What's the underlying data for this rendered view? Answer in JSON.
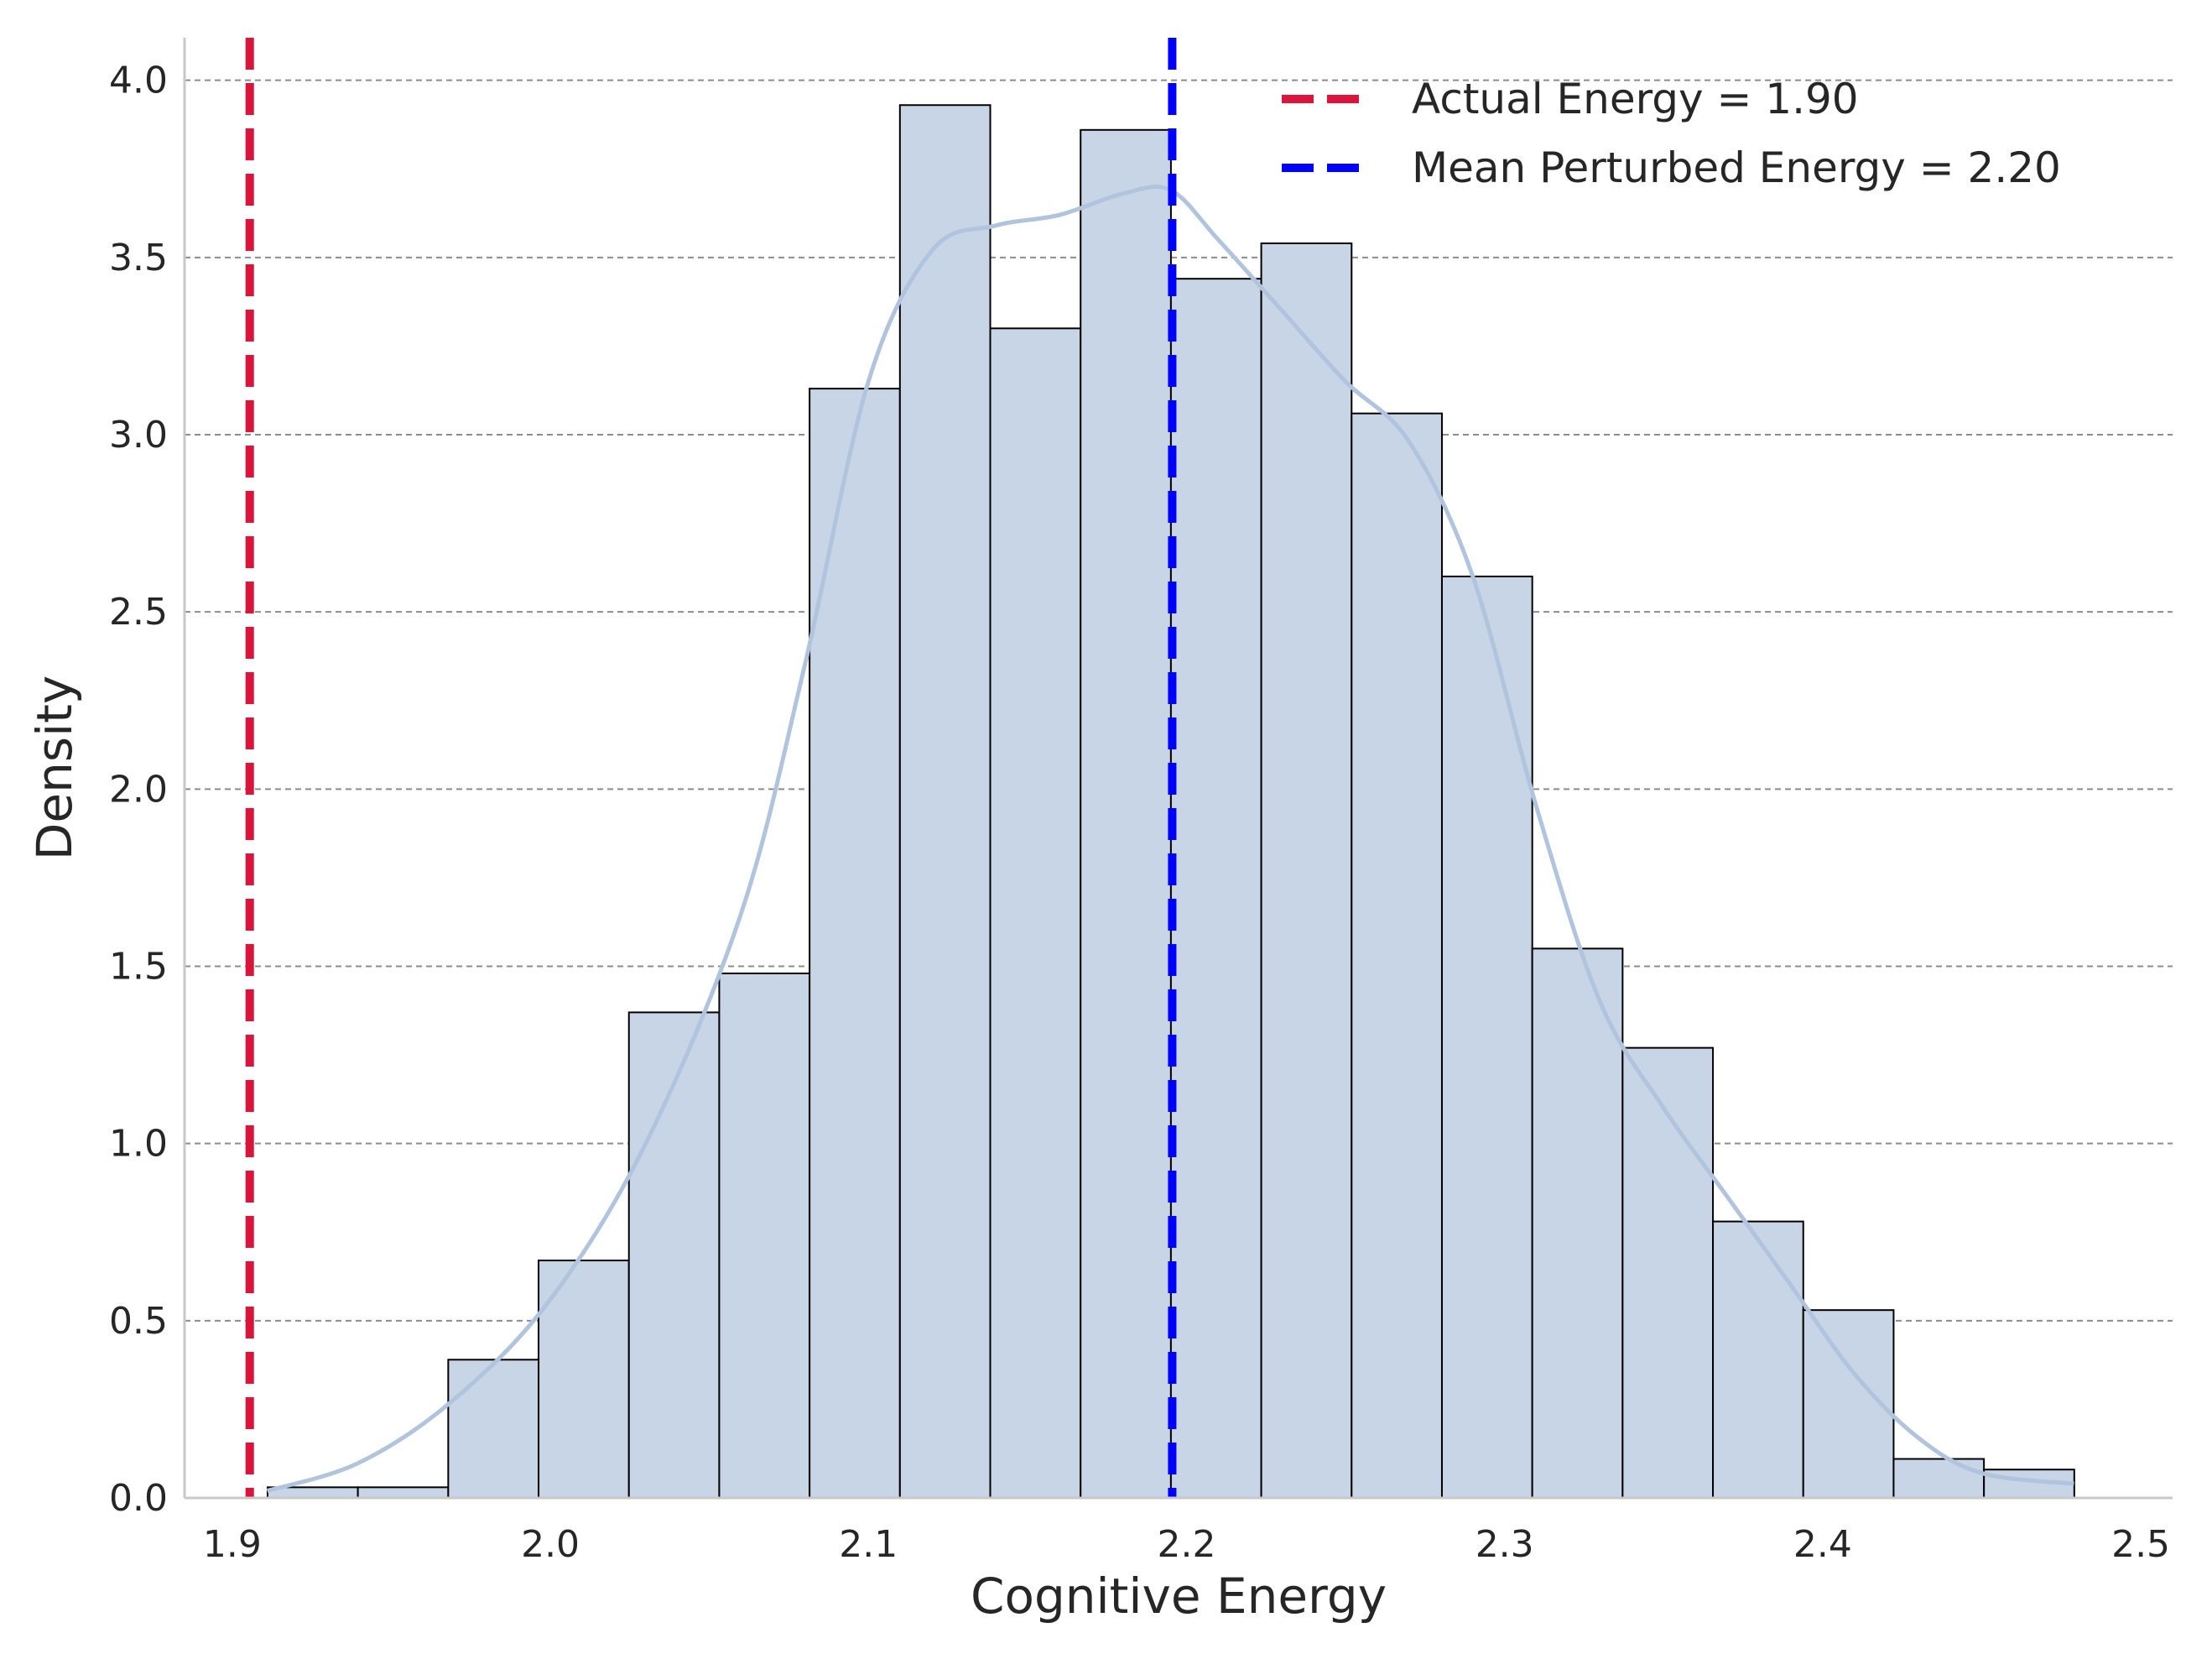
{
  "chart_data": {
    "type": "bar",
    "title": "",
    "xlabel": "Cognitive Energy",
    "ylabel": "Density",
    "xlim": [
      1.885,
      2.51
    ],
    "ylim": [
      0,
      4.12
    ],
    "grid": "horizontal dashed",
    "legend_position": "top-right",
    "xticks": [
      1.9,
      2.0,
      2.1,
      2.2,
      2.3,
      2.4,
      2.5
    ],
    "xtick_labels": [
      "1.9",
      "2.0",
      "2.1",
      "2.2",
      "2.3",
      "2.4",
      "2.5"
    ],
    "yticks": [
      0.0,
      0.5,
      1.0,
      1.5,
      2.0,
      2.5,
      3.0,
      3.5,
      4.0
    ],
    "ytick_labels": [
      "0.0",
      "0.5",
      "1.0",
      "1.5",
      "2.0",
      "2.5",
      "3.0",
      "3.5",
      "4.0"
    ],
    "histogram": {
      "bin_edges": [
        1.9111,
        1.9395,
        1.9679,
        1.9963,
        2.0247,
        2.0531,
        2.0815,
        2.1099,
        2.1383,
        2.1667,
        2.1951,
        2.2235,
        2.2519,
        2.2803,
        2.3087,
        2.3371,
        2.3655,
        2.3939,
        2.4223,
        2.4507,
        2.4791
      ],
      "densities": [
        0.03,
        0.03,
        0.39,
        0.67,
        1.37,
        1.48,
        3.13,
        3.93,
        3.3,
        3.86,
        3.44,
        3.54,
        3.06,
        2.6,
        1.55,
        1.27,
        0.78,
        0.53,
        0.11,
        0.08
      ],
      "color": "#c8d5e6",
      "edge_color": "#000000"
    },
    "kde": {
      "x": [
        1.911,
        1.94,
        1.97,
        2.0,
        2.03,
        2.06,
        2.08,
        2.1,
        2.12,
        2.14,
        2.16,
        2.18,
        2.195,
        2.21,
        2.23,
        2.25,
        2.27,
        2.29,
        2.31,
        2.33,
        2.35,
        2.37,
        2.39,
        2.41,
        2.43,
        2.45,
        2.479
      ],
      "y": [
        0.02,
        0.1,
        0.28,
        0.56,
        1.0,
        1.65,
        2.35,
        3.15,
        3.52,
        3.59,
        3.62,
        3.68,
        3.69,
        3.55,
        3.35,
        3.15,
        2.98,
        2.6,
        1.95,
        1.4,
        1.1,
        0.85,
        0.6,
        0.35,
        0.17,
        0.07,
        0.04
      ],
      "color": "#b0c4de"
    },
    "reference_lines": [
      {
        "name": "Actual Energy = 1.90",
        "x": 1.9055,
        "color": "#dc143c"
      },
      {
        "name": "Mean Perturbed Energy = 2.20",
        "x": 2.1955,
        "color": "#0000ff"
      }
    ]
  }
}
